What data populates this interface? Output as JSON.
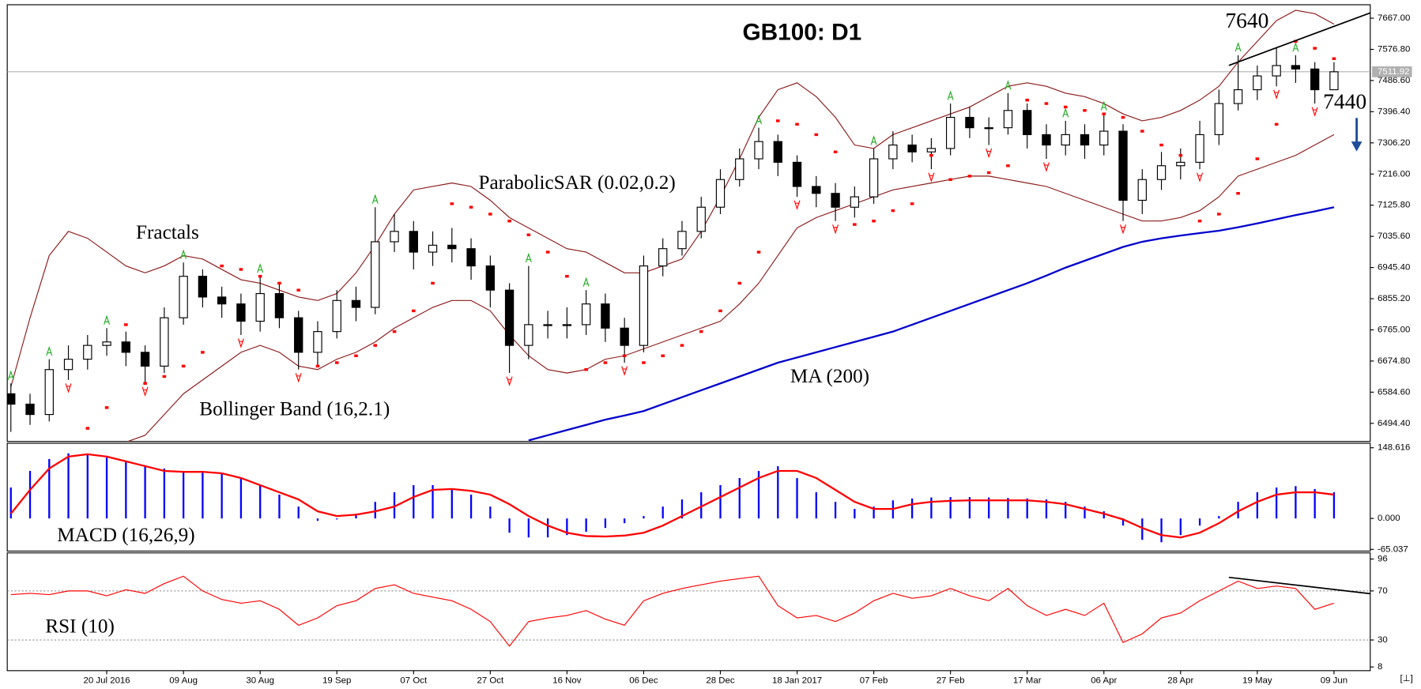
{
  "chart_data": [
    {
      "type": "candlestick",
      "title": "GB100: D1",
      "corner_label": "[⊥]",
      "annotations": [
        "7640",
        "7440"
      ],
      "up_color": "#ffffff",
      "down_color": "#000000",
      "categories": [
        null,
        null,
        null,
        null,
        null,
        "20 Jul 2016",
        null,
        null,
        null,
        "09 Aug",
        null,
        null,
        null,
        "30 Aug",
        null,
        null,
        null,
        "19 Sep",
        null,
        null,
        null,
        "07 Oct",
        null,
        null,
        null,
        "27 Oct",
        null,
        null,
        null,
        "16 Nov",
        null,
        null,
        null,
        "06 Dec",
        null,
        null,
        null,
        "28 Dec",
        null,
        null,
        null,
        "18 Jan 2017",
        null,
        null,
        null,
        "07 Feb",
        null,
        null,
        null,
        "27 Feb",
        null,
        null,
        null,
        "17 Mar",
        null,
        null,
        null,
        "06 Apr",
        null,
        null,
        null,
        "28 Apr",
        null,
        null,
        null,
        "19 May",
        null,
        null,
        null,
        "09 Jun"
      ],
      "open": [
        6580,
        6550,
        6520,
        6650,
        6680,
        6720,
        6730,
        6700,
        6660,
        6800,
        6920,
        6860,
        6840,
        6790,
        6870,
        6800,
        6700,
        6760,
        6850,
        6830,
        7020,
        7050,
        6990,
        7010,
        7000,
        6950,
        6880,
        6720,
        6780,
        6780,
        6780,
        6840,
        6770,
        6720,
        6950,
        7000,
        7050,
        7120,
        7200,
        7260,
        7310,
        7250,
        7180,
        7160,
        7120,
        7150,
        7260,
        7300,
        7280,
        7290,
        7380,
        7350,
        7350,
        7400,
        7330,
        7300,
        7330,
        7300,
        7340,
        7140,
        7200,
        7240,
        7250,
        7330,
        7420,
        7460,
        7500,
        7530,
        7520,
        7460
      ],
      "high": [
        6610,
        6580,
        6680,
        6720,
        6750,
        6770,
        6760,
        6720,
        6830,
        6960,
        6940,
        6890,
        6870,
        6920,
        6900,
        6820,
        6790,
        6880,
        6890,
        7120,
        7100,
        7080,
        7050,
        7060,
        7030,
        6980,
        6900,
        6950,
        6820,
        6830,
        6880,
        6870,
        6800,
        6980,
        7030,
        7080,
        7150,
        7230,
        7290,
        7350,
        7330,
        7270,
        7210,
        7190,
        7180,
        7290,
        7340,
        7330,
        7320,
        7420,
        7410,
        7380,
        7450,
        7420,
        7360,
        7370,
        7360,
        7390,
        7360,
        7230,
        7280,
        7290,
        7370,
        7460,
        7560,
        7530,
        7580,
        7560,
        7540,
        7540
      ],
      "low": [
        6470,
        6490,
        6500,
        6620,
        6650,
        6690,
        6660,
        6610,
        6640,
        6780,
        6830,
        6800,
        6750,
        6760,
        6770,
        6650,
        6660,
        6740,
        6790,
        6810,
        6990,
        6940,
        6950,
        6960,
        6910,
        6830,
        6640,
        6680,
        6740,
        6740,
        6750,
        6730,
        6670,
        6700,
        6920,
        6980,
        7030,
        7100,
        7180,
        7230,
        7210,
        7150,
        7120,
        7080,
        7090,
        7130,
        7230,
        7250,
        7230,
        7270,
        7320,
        7300,
        7330,
        7290,
        7260,
        7270,
        7260,
        7270,
        7080,
        7100,
        7170,
        7200,
        7230,
        7300,
        7400,
        7430,
        7470,
        7480,
        7420,
        7470
      ],
      "close": [
        6550,
        6520,
        6650,
        6680,
        6720,
        6730,
        6700,
        6660,
        6800,
        6920,
        6860,
        6840,
        6790,
        6870,
        6800,
        6700,
        6760,
        6850,
        6830,
        7020,
        7050,
        6990,
        7010,
        7000,
        6950,
        6880,
        6720,
        6780,
        6780,
        6780,
        6840,
        6770,
        6720,
        6950,
        7000,
        7050,
        7120,
        7200,
        7260,
        7310,
        7250,
        7180,
        7160,
        7120,
        7150,
        7260,
        7300,
        7280,
        7290,
        7380,
        7350,
        7350,
        7400,
        7330,
        7300,
        7330,
        7300,
        7340,
        7140,
        7200,
        7240,
        7250,
        7330,
        7420,
        7460,
        7500,
        7530,
        7520,
        7460,
        7511.92
      ],
      "ylim": [
        6442,
        7706
      ],
      "yticks": [
        {
          "value": 7667,
          "label": "7667.00"
        },
        {
          "value": 7576.8,
          "label": "7576.80"
        },
        {
          "value": 7486.6,
          "label": "7486.60"
        },
        {
          "value": 7396.4,
          "label": "7396.40"
        },
        {
          "value": 7306.2,
          "label": "7306.20"
        },
        {
          "value": 7216,
          "label": "7216.00"
        },
        {
          "value": 7125.8,
          "label": "7125.80"
        },
        {
          "value": 7035.6,
          "label": "7035.60"
        },
        {
          "value": 6945.4,
          "label": "6945.40"
        },
        {
          "value": 6855.2,
          "label": "6855.20"
        },
        {
          "value": 6765,
          "label": "6765.00"
        },
        {
          "value": 6674.8,
          "label": "6674.80"
        },
        {
          "value": 6584.6,
          "label": "6584.60"
        },
        {
          "value": 6494.4,
          "label": "6494.40"
        }
      ],
      "overlays": [
        {
          "name": "Bollinger Band (16,2.1)",
          "type": "band",
          "color": "#8b1a1a",
          "upper": [
            6600,
            6800,
            6980,
            7050,
            7030,
            6990,
            6950,
            6930,
            6950,
            6980,
            6970,
            6940,
            6910,
            6900,
            6880,
            6860,
            6850,
            6870,
            6930,
            7010,
            7100,
            7170,
            7180,
            7190,
            7180,
            7140,
            7090,
            7060,
            7030,
            7000,
            6990,
            6960,
            6930,
            6930,
            6950,
            6970,
            7050,
            7150,
            7260,
            7380,
            7460,
            7480,
            7440,
            7380,
            7300,
            7290,
            7330,
            7350,
            7370,
            7390,
            7410,
            7440,
            7470,
            7480,
            7470,
            7450,
            7440,
            7420,
            7390,
            7370,
            7380,
            7400,
            7430,
            7470,
            7540,
            7600,
            7660,
            7690,
            7680,
            7650
          ],
          "lower": [
            6350,
            6350,
            6360,
            6380,
            6400,
            6420,
            6440,
            6460,
            6520,
            6580,
            6620,
            6660,
            6700,
            6720,
            6700,
            6660,
            6650,
            6680,
            6700,
            6730,
            6770,
            6800,
            6830,
            6850,
            6850,
            6820,
            6750,
            6690,
            6650,
            6640,
            6650,
            6680,
            6690,
            6710,
            6730,
            6750,
            6770,
            6790,
            6840,
            6900,
            6980,
            7060,
            7090,
            7110,
            7130,
            7150,
            7170,
            7180,
            7190,
            7200,
            7210,
            7210,
            7200,
            7190,
            7180,
            7160,
            7140,
            7120,
            7100,
            7080,
            7080,
            7090,
            7110,
            7150,
            7210,
            7230,
            7250,
            7270,
            7300,
            7330
          ]
        },
        {
          "name": "ParabolicSAR (0.02,0.2)",
          "type": "dots",
          "color": "#ff0000",
          "values": [
            null,
            null,
            null,
            null,
            6480,
            6540,
            6780,
            6610,
            6630,
            6660,
            6700,
            6950,
            6940,
            6920,
            6900,
            6880,
            6660,
            6670,
            6690,
            6720,
            6760,
            6820,
            6900,
            7130,
            7120,
            7100,
            7080,
            7040,
            6990,
            6920,
            6650,
            6670,
            6690,
            6670,
            6690,
            6720,
            6760,
            6820,
            6900,
            6990,
            7370,
            7360,
            7330,
            7280,
            7070,
            7080,
            7110,
            7130,
            7270,
            7200,
            7210,
            7220,
            7240,
            7430,
            7420,
            7410,
            7400,
            7390,
            7380,
            7340,
            7300,
            7270,
            7080,
            7100,
            7160,
            7260,
            7360,
            7600,
            7580,
            7550
          ]
        },
        {
          "name": "MA (200)",
          "type": "line",
          "color": "#0000cc",
          "values": [
            null,
            null,
            null,
            null,
            null,
            null,
            null,
            null,
            null,
            null,
            null,
            null,
            null,
            null,
            null,
            null,
            null,
            null,
            null,
            null,
            null,
            null,
            null,
            null,
            null,
            null,
            null,
            6445,
            6460,
            6475,
            6490,
            6505,
            6517,
            6530,
            6550,
            6570,
            6590,
            6610,
            6630,
            6650,
            6670,
            6685,
            6700,
            6715,
            6730,
            6745,
            6760,
            6780,
            6800,
            6820,
            6840,
            6860,
            6880,
            6900,
            6922,
            6945,
            6965,
            6985,
            7005,
            7020,
            7030,
            7038,
            7045,
            7052,
            7062,
            7073,
            7085,
            7097,
            7108,
            7120
          ]
        },
        {
          "name": "Fractals",
          "type": "fractals",
          "up_color": "#22aa22",
          "down_color": "#ff0000",
          "up": [
            6610,
            null,
            6680,
            null,
            null,
            6770,
            null,
            null,
            null,
            6960,
            null,
            null,
            null,
            6920,
            null,
            null,
            null,
            null,
            null,
            7120,
            null,
            null,
            null,
            null,
            null,
            null,
            null,
            6950,
            null,
            null,
            6880,
            null,
            null,
            null,
            null,
            null,
            null,
            null,
            null,
            7350,
            null,
            null,
            null,
            null,
            null,
            7290,
            null,
            null,
            null,
            7420,
            null,
            null,
            7450,
            null,
            null,
            7370,
            null,
            7390,
            null,
            null,
            null,
            null,
            null,
            null,
            7560,
            null,
            null,
            7560,
            null,
            null
          ],
          "down": [
            null,
            null,
            null,
            6620,
            null,
            null,
            null,
            6610,
            null,
            null,
            null,
            null,
            6750,
            null,
            null,
            6650,
            null,
            null,
            null,
            null,
            null,
            null,
            null,
            null,
            null,
            null,
            6640,
            null,
            null,
            null,
            null,
            null,
            6670,
            null,
            null,
            null,
            null,
            null,
            null,
            null,
            null,
            7150,
            null,
            7080,
            null,
            null,
            null,
            null,
            7230,
            null,
            null,
            7300,
            null,
            null,
            7260,
            null,
            null,
            null,
            7080,
            null,
            null,
            null,
            7230,
            null,
            null,
            null,
            7470,
            null,
            7420,
            null
          ]
        }
      ]
    },
    {
      "type": "macd",
      "title": "MACD (16,26,9)",
      "ylim": [
        -68.6,
        158.1
      ],
      "yticks": [
        148.616,
        {
          "value": 0,
          "label": "0.000"
        },
        -65.037
      ],
      "histogram": {
        "color": "#0000ff",
        "values": [
          65,
          100,
          125,
          137,
          135,
          128,
          120,
          112,
          105,
          100,
          98,
          95,
          85,
          70,
          50,
          25,
          -5,
          -2,
          10,
          35,
          55,
          70,
          70,
          62,
          50,
          25,
          -30,
          -40,
          -40,
          -35,
          -28,
          -20,
          -10,
          5,
          25,
          40,
          55,
          70,
          85,
          100,
          110,
          85,
          55,
          35,
          20,
          25,
          38,
          42,
          44,
          45,
          45,
          44,
          43,
          42,
          40,
          35,
          25,
          15,
          -15,
          -45,
          -50,
          -35,
          -15,
          5,
          35,
          55,
          65,
          68,
          62,
          55
        ]
      },
      "signal": {
        "color": "#ff0000",
        "values": [
          10,
          60,
          105,
          130,
          135,
          130,
          120,
          110,
          100,
          98,
          98,
          95,
          85,
          70,
          55,
          40,
          15,
          5,
          8,
          15,
          25,
          45,
          60,
          62,
          58,
          50,
          30,
          5,
          -15,
          -30,
          -37,
          -38,
          -36,
          -30,
          -15,
          5,
          25,
          45,
          65,
          85,
          100,
          100,
          85,
          60,
          35,
          20,
          20,
          30,
          35,
          37,
          38,
          38,
          38,
          38,
          35,
          30,
          20,
          10,
          -2,
          -20,
          -35,
          -40,
          -30,
          -10,
          15,
          35,
          50,
          55,
          55,
          50
        ]
      }
    },
    {
      "type": "rsi",
      "title": "RSI (10)",
      "ylim": [
        5,
        101
      ],
      "yticks": [
        96,
        70,
        30,
        8
      ],
      "levels": [
        70,
        30
      ],
      "color": "#ff0000",
      "values": [
        67,
        68,
        67,
        70,
        70,
        66,
        71,
        68,
        76,
        82,
        70,
        63,
        60,
        62,
        55,
        42,
        48,
        58,
        62,
        72,
        75,
        68,
        65,
        62,
        55,
        45,
        25,
        45,
        48,
        50,
        54,
        47,
        42,
        62,
        68,
        72,
        75,
        78,
        80,
        82,
        58,
        48,
        50,
        45,
        52,
        62,
        68,
        64,
        66,
        72,
        66,
        62,
        72,
        58,
        50,
        55,
        50,
        60,
        28,
        35,
        48,
        52,
        62,
        70,
        78,
        72,
        74,
        72,
        55,
        60
      ]
    }
  ]
}
